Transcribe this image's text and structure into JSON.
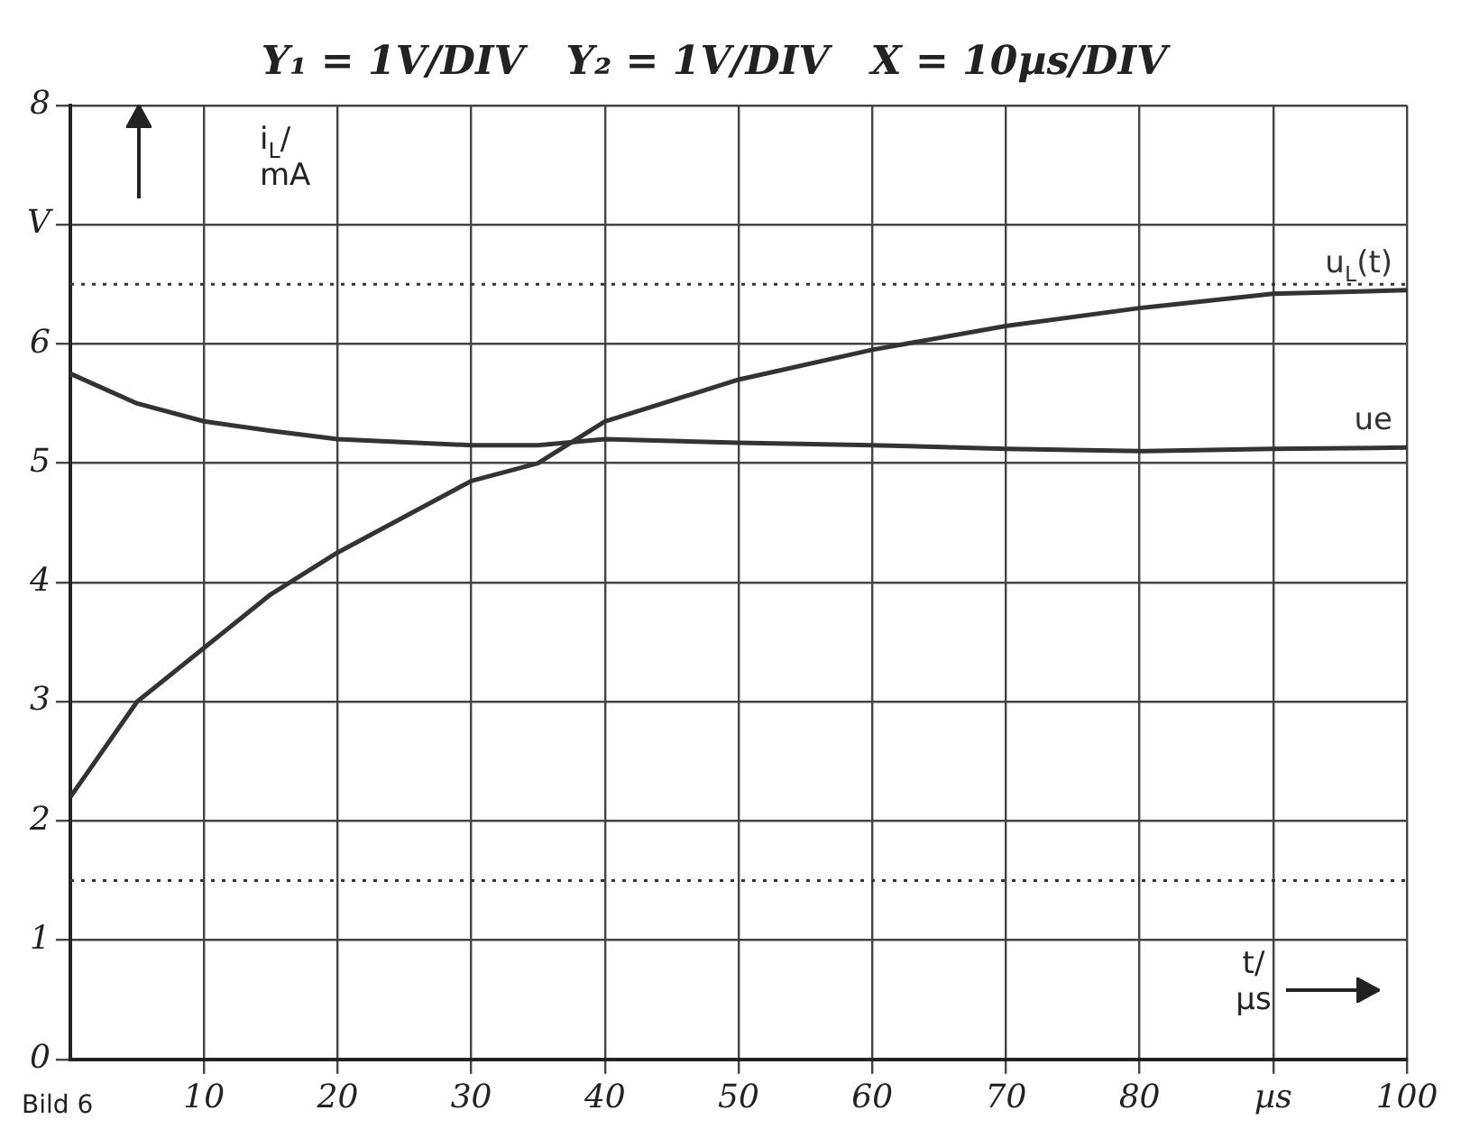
{
  "chart_data": {
    "type": "line",
    "title": "Y₁ = 1V/DIV   Y₂ = 1V/DIV   X = 10µs/DIV",
    "xlabel": "t/ µs",
    "ylabel": "i$_{L}$/ mA",
    "annotations": [
      "Bild 6"
    ],
    "x": [
      0,
      5,
      10,
      15,
      20,
      30,
      35,
      40,
      50,
      60,
      70,
      80,
      90,
      100
    ],
    "series": [
      {
        "name": "u$_{L}$(t)",
        "color": "#333333",
        "values": [
          2.2,
          3.0,
          3.45,
          3.9,
          4.25,
          4.85,
          5.0,
          5.35,
          5.7,
          5.95,
          6.15,
          6.3,
          6.42,
          6.45
        ]
      },
      {
        "name": "ue",
        "color": "#333333",
        "values": [
          5.75,
          5.5,
          5.35,
          5.27,
          5.2,
          5.15,
          5.15,
          5.2,
          5.17,
          5.15,
          5.12,
          5.1,
          5.12,
          5.13
        ]
      }
    ],
    "xlim": [
      0,
      100
    ],
    "xticks": [
      10,
      20,
      30,
      40,
      50,
      60,
      70,
      80,
      {
        "value": 90,
        "label": "µs"
      },
      100
    ],
    "ylim": [
      0,
      8
    ],
    "yticks": [
      0,
      1,
      2,
      3,
      4,
      5,
      6,
      {
        "value": 7,
        "label": "V"
      },
      8
    ],
    "ref_lines": [
      {
        "axis": "y",
        "value": 6.5,
        "line_style": "dotted"
      },
      {
        "axis": "y",
        "value": 1.5,
        "line_style": "dotted"
      }
    ],
    "grid": true,
    "legend": false,
    "marker": "none",
    "line_style": "solid"
  }
}
